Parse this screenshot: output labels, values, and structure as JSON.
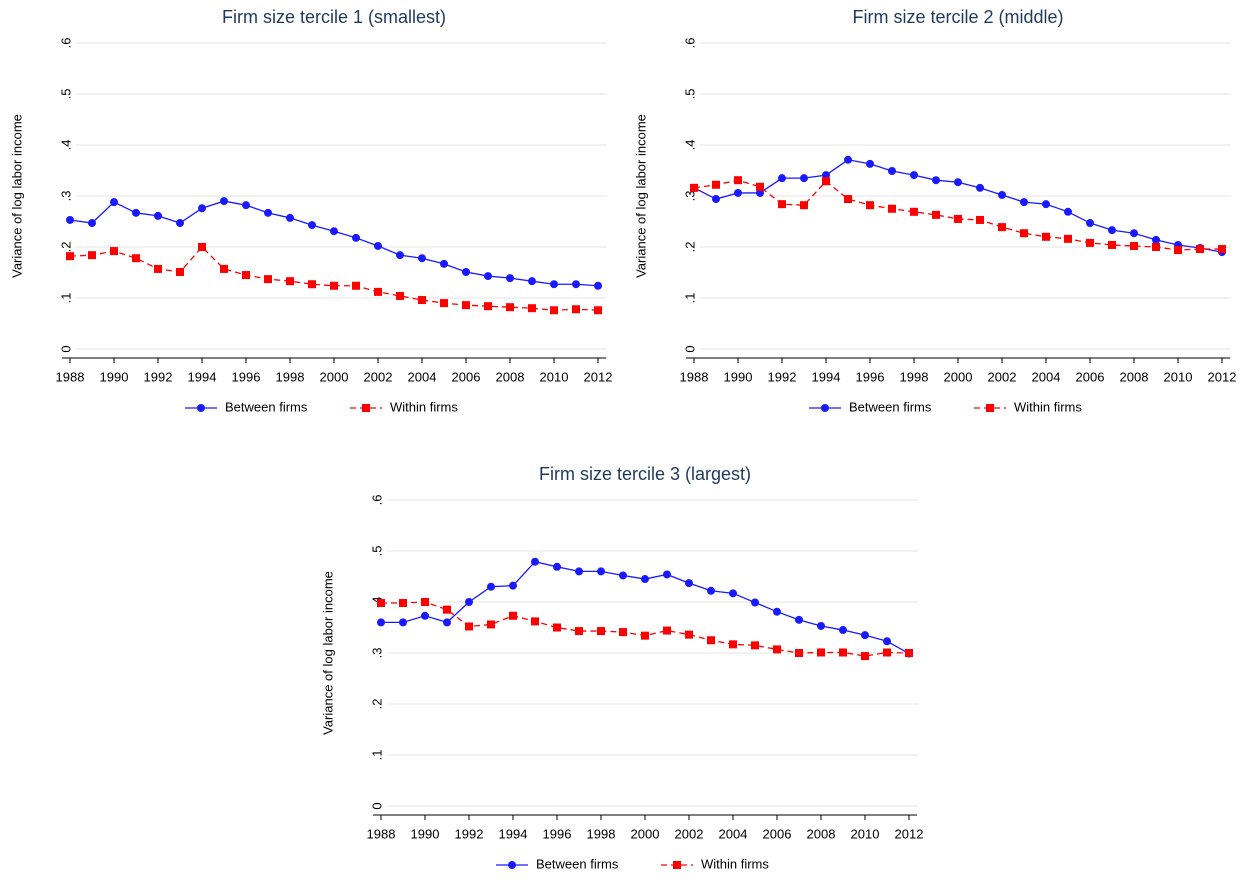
{
  "chart_data": [
    {
      "type": "line",
      "title": "Firm size tercile 1 (smallest)",
      "y_label": "Variance of log labor income",
      "x": [
        1988,
        1989,
        1990,
        1991,
        1992,
        1993,
        1994,
        1995,
        1996,
        1997,
        1998,
        1999,
        2000,
        2001,
        2002,
        2003,
        2004,
        2005,
        2006,
        2007,
        2008,
        2009,
        2010,
        2011,
        2012
      ],
      "xlim": [
        1988,
        2012
      ],
      "xticks": [
        1988,
        1990,
        1992,
        1994,
        1996,
        1998,
        2000,
        2002,
        2004,
        2006,
        2008,
        2010,
        2012
      ],
      "ylim": [
        0,
        0.6
      ],
      "yticks": [
        0,
        {
          "value": 0.1,
          "label": ".1"
        },
        {
          "value": 0.2,
          "label": ".2"
        },
        {
          "value": 0.3,
          "label": ".3"
        },
        {
          "value": 0.4,
          "label": ".4"
        },
        {
          "value": 0.5,
          "label": ".5"
        },
        {
          "value": 0.6,
          "label": ".6"
        }
      ],
      "grid": true,
      "legend": "bottom",
      "series": [
        {
          "name": "Between firms",
          "color": "#1a1aff",
          "marker": "circle",
          "linestyle": "solid",
          "values": [
            0.253,
            0.247,
            0.288,
            0.267,
            0.261,
            0.247,
            0.276,
            0.29,
            0.282,
            0.267,
            0.257,
            0.243,
            0.231,
            0.218,
            0.202,
            0.184,
            0.178,
            0.167,
            0.151,
            0.143,
            0.139,
            0.133,
            0.127,
            0.127,
            0.124
          ]
        },
        {
          "name": "Within firms",
          "color": "#ff0000",
          "marker": "square",
          "linestyle": "dashed",
          "values": [
            0.182,
            0.184,
            0.192,
            0.178,
            0.157,
            0.151,
            0.2,
            0.157,
            0.145,
            0.137,
            0.133,
            0.127,
            0.124,
            0.124,
            0.112,
            0.104,
            0.096,
            0.09,
            0.086,
            0.084,
            0.082,
            0.08,
            0.076,
            0.078,
            0.076
          ]
        }
      ]
    },
    {
      "type": "line",
      "title": "Firm size tercile 2 (middle)",
      "y_label": "Variance of log labor income",
      "x": [
        1988,
        1989,
        1990,
        1991,
        1992,
        1993,
        1994,
        1995,
        1996,
        1997,
        1998,
        1999,
        2000,
        2001,
        2002,
        2003,
        2004,
        2005,
        2006,
        2007,
        2008,
        2009,
        2010,
        2011,
        2012
      ],
      "xlim": [
        1988,
        2012
      ],
      "xticks": [
        1988,
        1990,
        1992,
        1994,
        1996,
        1998,
        2000,
        2002,
        2004,
        2006,
        2008,
        2010,
        2012
      ],
      "ylim": [
        0,
        0.6
      ],
      "yticks": [
        0,
        {
          "value": 0.1,
          "label": ".1"
        },
        {
          "value": 0.2,
          "label": ".2"
        },
        {
          "value": 0.3,
          "label": ".3"
        },
        {
          "value": 0.4,
          "label": ".4"
        },
        {
          "value": 0.5,
          "label": ".5"
        },
        {
          "value": 0.6,
          "label": ".6"
        }
      ],
      "grid": true,
      "legend": "bottom",
      "series": [
        {
          "name": "Between firms",
          "color": "#1a1aff",
          "marker": "circle",
          "linestyle": "solid",
          "values": [
            0.316,
            0.294,
            0.306,
            0.306,
            0.335,
            0.335,
            0.341,
            0.371,
            0.363,
            0.349,
            0.341,
            0.331,
            0.327,
            0.316,
            0.302,
            0.288,
            0.284,
            0.269,
            0.247,
            0.233,
            0.227,
            0.214,
            0.204,
            0.198,
            0.19
          ]
        },
        {
          "name": "Within firms",
          "color": "#ff0000",
          "marker": "square",
          "linestyle": "dashed",
          "values": [
            0.316,
            0.322,
            0.331,
            0.318,
            0.284,
            0.282,
            0.329,
            0.294,
            0.282,
            0.275,
            0.269,
            0.263,
            0.255,
            0.253,
            0.239,
            0.227,
            0.22,
            0.216,
            0.208,
            0.204,
            0.202,
            0.2,
            0.194,
            0.196,
            0.196
          ]
        }
      ]
    },
    {
      "type": "line",
      "title": "Firm size tercile 3 (largest)",
      "y_label": "Variance of log labor income",
      "x": [
        1988,
        1989,
        1990,
        1991,
        1992,
        1993,
        1994,
        1995,
        1996,
        1997,
        1998,
        1999,
        2000,
        2001,
        2002,
        2003,
        2004,
        2005,
        2006,
        2007,
        2008,
        2009,
        2010,
        2011,
        2012
      ],
      "xlim": [
        1988,
        2012
      ],
      "xticks": [
        1988,
        1990,
        1992,
        1994,
        1996,
        1998,
        2000,
        2002,
        2004,
        2006,
        2008,
        2010,
        2012
      ],
      "ylim": [
        0,
        0.6
      ],
      "yticks": [
        0,
        {
          "value": 0.1,
          "label": ".1"
        },
        {
          "value": 0.2,
          "label": ".2"
        },
        {
          "value": 0.3,
          "label": ".3"
        },
        {
          "value": 0.4,
          "label": ".4"
        },
        {
          "value": 0.5,
          "label": ".5"
        },
        {
          "value": 0.6,
          "label": ".6"
        }
      ],
      "grid": true,
      "legend": "bottom",
      "series": [
        {
          "name": "Between firms",
          "color": "#1a1aff",
          "marker": "circle",
          "linestyle": "solid",
          "values": [
            0.36,
            0.36,
            0.373,
            0.36,
            0.4,
            0.43,
            0.432,
            0.479,
            0.469,
            0.46,
            0.46,
            0.452,
            0.445,
            0.454,
            0.437,
            0.422,
            0.417,
            0.399,
            0.381,
            0.365,
            0.353,
            0.345,
            0.335,
            0.323,
            0.299
          ]
        },
        {
          "name": "Within firms",
          "color": "#ff0000",
          "marker": "square",
          "linestyle": "dashed",
          "values": [
            0.398,
            0.398,
            0.4,
            0.385,
            0.352,
            0.356,
            0.373,
            0.362,
            0.35,
            0.343,
            0.343,
            0.341,
            0.334,
            0.344,
            0.336,
            0.325,
            0.317,
            0.315,
            0.307,
            0.3,
            0.301,
            0.301,
            0.294,
            0.301,
            0.3
          ]
        }
      ]
    }
  ]
}
